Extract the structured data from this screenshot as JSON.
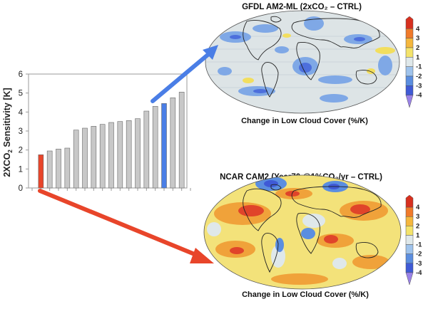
{
  "chart_data": [
    {
      "type": "bar",
      "ylabel_main": "2XCO",
      "ylabel_sub": "2",
      "ylabel_rest": " Sensitivity  [K]",
      "ylim": [
        0,
        6
      ],
      "yticks": [
        "0",
        "1",
        "2",
        "3",
        "4",
        "5",
        "6"
      ],
      "grid": false,
      "values": [
        1.75,
        1.95,
        2.05,
        2.1,
        3.05,
        3.15,
        3.25,
        3.35,
        3.45,
        3.5,
        3.55,
        3.65,
        4.05,
        4.3,
        4.45,
        4.75,
        5.05
      ],
      "highlight": {
        "low_index": 0,
        "high_index": 14
      },
      "colors": {
        "bar": "#c8c8c8",
        "low": "#e8452a",
        "high": "#4a7ee6"
      }
    },
    {
      "type": "heatmap",
      "title": "GFDL  AM2-ML  (2xCO₂ – CTRL)",
      "caption": "Change in Low Cloud Cover  (%/K)",
      "colorbar_ticks": [
        "4",
        "3",
        "2",
        "1",
        "-1",
        "-2",
        "-3",
        "-4"
      ],
      "colorbar_colors": [
        "#d7301f",
        "#f07a2a",
        "#f5b73d",
        "#f4e36b",
        "#dfe8ea",
        "#9fc3ec",
        "#5b8ee0",
        "#3f5ad6",
        "#9a82e8"
      ]
    },
    {
      "type": "heatmap",
      "title": "NCAR  CAM2  (Year70 @1%CO₂/yr – CTRL)",
      "caption": "Change in Low Cloud Cover  (%/K)",
      "colorbar_ticks": [
        "4",
        "3",
        "2",
        "1",
        "-1",
        "-2",
        "-3",
        "-4"
      ],
      "colorbar_colors": [
        "#d7301f",
        "#f07a2a",
        "#f5b73d",
        "#f4e36b",
        "#dfe8ea",
        "#9fc3ec",
        "#5b8ee0",
        "#3f5ad6",
        "#9a82e8"
      ]
    }
  ],
  "colors": {
    "arrow_high": "#4a7ee6",
    "arrow_low": "#e8452a",
    "map_base": "#dde4e6",
    "coast": "#222222"
  }
}
